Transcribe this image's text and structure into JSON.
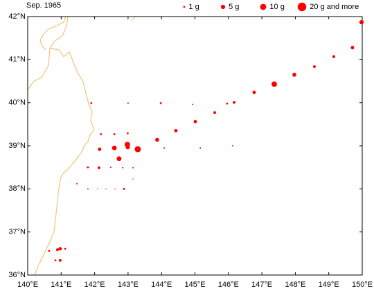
{
  "chart_data": {
    "type": "scatter",
    "title": "Sep. 1965",
    "color": "#ff0000",
    "xlim": [
      140,
      150
    ],
    "ylim": [
      36,
      42
    ],
    "xticks": [
      {
        "value": 140,
        "label": "140°E"
      },
      {
        "value": 141,
        "label": "141°E"
      },
      {
        "value": 142,
        "label": "142°E"
      },
      {
        "value": 143,
        "label": "143°E"
      },
      {
        "value": 144,
        "label": "144°E"
      },
      {
        "value": 145,
        "label": "145°E"
      },
      {
        "value": 146,
        "label": "146°E"
      },
      {
        "value": 147,
        "label": "147°E"
      },
      {
        "value": 148,
        "label": "148°E"
      },
      {
        "value": 149,
        "label": "149°E"
      },
      {
        "value": 150,
        "label": "150°E"
      }
    ],
    "yticks": [
      {
        "value": 36,
        "label": "36°N"
      },
      {
        "value": 37,
        "label": "37°N"
      },
      {
        "value": 38,
        "label": "38°N"
      },
      {
        "value": 39,
        "label": "39°N"
      },
      {
        "value": 40,
        "label": "40°N"
      },
      {
        "value": 41,
        "label": "41°N"
      },
      {
        "value": 42,
        "label": "42°N"
      }
    ],
    "size_legend": [
      {
        "value": 1,
        "label": "1 g"
      },
      {
        "value": 5,
        "label": "5 g"
      },
      {
        "value": 10,
        "label": "10 g"
      },
      {
        "value": 20,
        "label": "20 g and more"
      }
    ],
    "x": [
      149.98,
      149.71,
      149.15,
      148.57,
      147.97,
      147.37,
      146.77,
      146.17,
      145.96,
      145.59,
      145.01,
      144.43,
      143.87,
      143.29,
      142.98,
      142.99,
      142.73,
      142.59,
      142.15,
      142.19,
      142.59,
      142.99,
      144.08,
      145.16,
      146.13,
      141.9,
      143.0,
      143.98,
      144.93,
      141.8,
      142.13,
      142.48,
      142.84,
      143.15,
      143.15,
      141.47,
      141.8,
      142.09,
      142.34,
      142.61,
      142.88,
      140.89,
      140.97,
      141.12,
      140.64,
      140.97,
      140.83
    ],
    "y": [
      41.87,
      41.28,
      41.07,
      40.84,
      40.65,
      40.43,
      40.24,
      40.01,
      39.98,
      39.77,
      39.56,
      39.35,
      39.14,
      38.92,
      39.03,
      38.97,
      38.7,
      38.95,
      38.92,
      39.27,
      39.27,
      39.29,
      38.95,
      38.95,
      39.0,
      39.99,
      39.99,
      39.99,
      39.96,
      38.5,
      38.49,
      38.5,
      38.49,
      38.49,
      38.23,
      38.12,
      38.0,
      38.0,
      38.0,
      38.0,
      38.0,
      36.59,
      36.61,
      36.61,
      36.56,
      36.34,
      36.34
    ],
    "sizes": [
      5,
      3,
      2,
      2,
      4,
      8,
      3,
      2,
      1,
      2,
      3,
      3,
      4,
      10,
      8,
      5,
      6,
      6,
      3,
      1,
      1,
      1,
      0.5,
      0.5,
      0.5,
      1,
      0.5,
      1,
      0.5,
      1,
      2,
      0.5,
      0.5,
      0.5,
      0.3,
      0.5,
      0.5,
      0.3,
      0.3,
      0.3,
      1,
      2,
      3,
      1,
      1,
      2,
      1
    ]
  }
}
